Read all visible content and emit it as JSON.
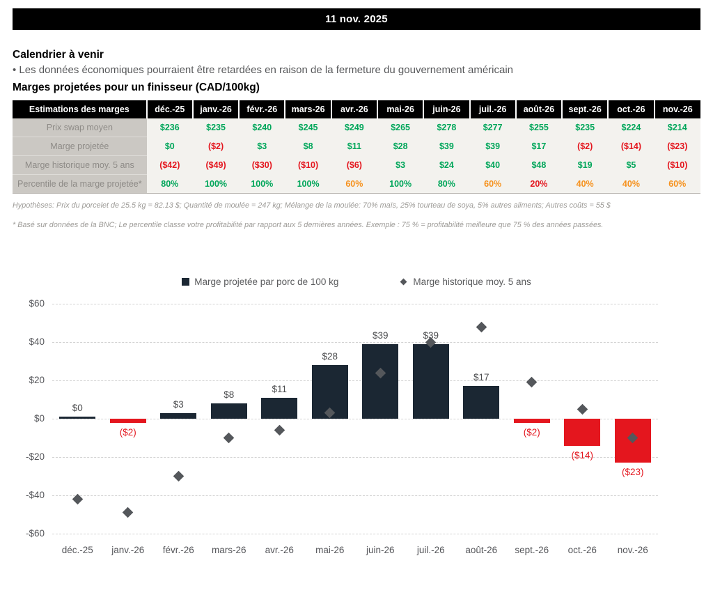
{
  "banner": {
    "date": "11 nov. 2025"
  },
  "calendar": {
    "title": "Calendrier à venir",
    "bullet": "• Les données économiques pourraient être retardées en raison de la fermeture du gouvernement américain"
  },
  "section_title": "Marges projetées pour un finisseur (CAD/100kg)",
  "colors": {
    "green": "#00A65A",
    "red": "#E4161E",
    "orange": "#F6921E",
    "navy": "#1B2733",
    "diamond": "#54575B"
  },
  "table": {
    "header": [
      "Estimations des marges",
      "déc.-25",
      "janv.-26",
      "févr.-26",
      "mars-26",
      "avr.-26",
      "mai-26",
      "juin-26",
      "juil.-26",
      "août-26",
      "sept.-26",
      "oct.-26",
      "nov.-26"
    ],
    "rows": [
      {
        "label": "Prix swap moyen",
        "values": [
          "$236",
          "$235",
          "$240",
          "$245",
          "$249",
          "$265",
          "$278",
          "$277",
          "$255",
          "$235",
          "$224",
          "$214"
        ],
        "colors": [
          "g",
          "g",
          "g",
          "g",
          "g",
          "g",
          "g",
          "g",
          "g",
          "g",
          "g",
          "g"
        ]
      },
      {
        "label": "Marge projetée",
        "values": [
          "$0",
          "($2)",
          "$3",
          "$8",
          "$11",
          "$28",
          "$39",
          "$39",
          "$17",
          "($2)",
          "($14)",
          "($23)"
        ],
        "colors": [
          "g",
          "r",
          "g",
          "g",
          "g",
          "g",
          "g",
          "g",
          "g",
          "r",
          "r",
          "r"
        ]
      },
      {
        "label": "Marge historique moy. 5 ans",
        "values": [
          "($42)",
          "($49)",
          "($30)",
          "($10)",
          "($6)",
          "$3",
          "$24",
          "$40",
          "$48",
          "$19",
          "$5",
          "($10)"
        ],
        "colors": [
          "r",
          "r",
          "r",
          "r",
          "r",
          "g",
          "g",
          "g",
          "g",
          "g",
          "g",
          "r"
        ]
      },
      {
        "label": "Percentile de la marge projetée*",
        "values": [
          "80%",
          "100%",
          "100%",
          "100%",
          "60%",
          "100%",
          "80%",
          "60%",
          "20%",
          "40%",
          "40%",
          "60%"
        ],
        "colors": [
          "g",
          "g",
          "g",
          "g",
          "o",
          "g",
          "g",
          "o",
          "r",
          "o",
          "o",
          "o"
        ]
      }
    ]
  },
  "notes": [
    "Hypothèses: Prix du porcelet de 25.5 kg = 82.13 $; Quantité de moulée = 247 kg; Mélange de la moulée: 70% maïs, 25% tourteau de soya, 5% autres aliments; Autres coûts = 55 $",
    "* Basé sur données de la BNC; Le percentile classe votre profitabilité par rapport aux 5 dernières années. Exemple : 75 % = profitabilité meilleure que 75 % des années passées."
  ],
  "chart_data": {
    "type": "bar",
    "categories": [
      "déc.-25",
      "janv.-26",
      "févr.-26",
      "mars-26",
      "avr.-26",
      "mai-26",
      "juin-26",
      "juil.-26",
      "août-26",
      "sept.-26",
      "oct.-26",
      "nov.-26"
    ],
    "series": [
      {
        "name": "Marge projetée par porc de 100 kg",
        "type": "bar",
        "values": [
          0,
          -2,
          3,
          8,
          11,
          28,
          39,
          39,
          17,
          -2,
          -14,
          -23
        ],
        "labels": [
          "$0",
          "($2)",
          "$3",
          "$8",
          "$11",
          "$28",
          "$39",
          "$39",
          "$17",
          "($2)",
          "($14)",
          "($23)"
        ]
      },
      {
        "name": "Marge historique moy. 5 ans",
        "type": "scatter-diamond",
        "values": [
          -42,
          -49,
          -30,
          -10,
          -6,
          3,
          24,
          40,
          48,
          19,
          5,
          -10
        ]
      }
    ],
    "title": "",
    "xlabel": "",
    "ylabel": "",
    "ylim": [
      -60,
      60
    ],
    "yticks": [
      60,
      40,
      20,
      0,
      -20,
      -40,
      -60
    ],
    "ytick_labels": [
      "$60",
      "$40",
      "$20",
      "$0",
      "-$20",
      "-$40",
      "-$60"
    ],
    "grid": "horizontal-dashed",
    "legend_position": "top-center"
  }
}
